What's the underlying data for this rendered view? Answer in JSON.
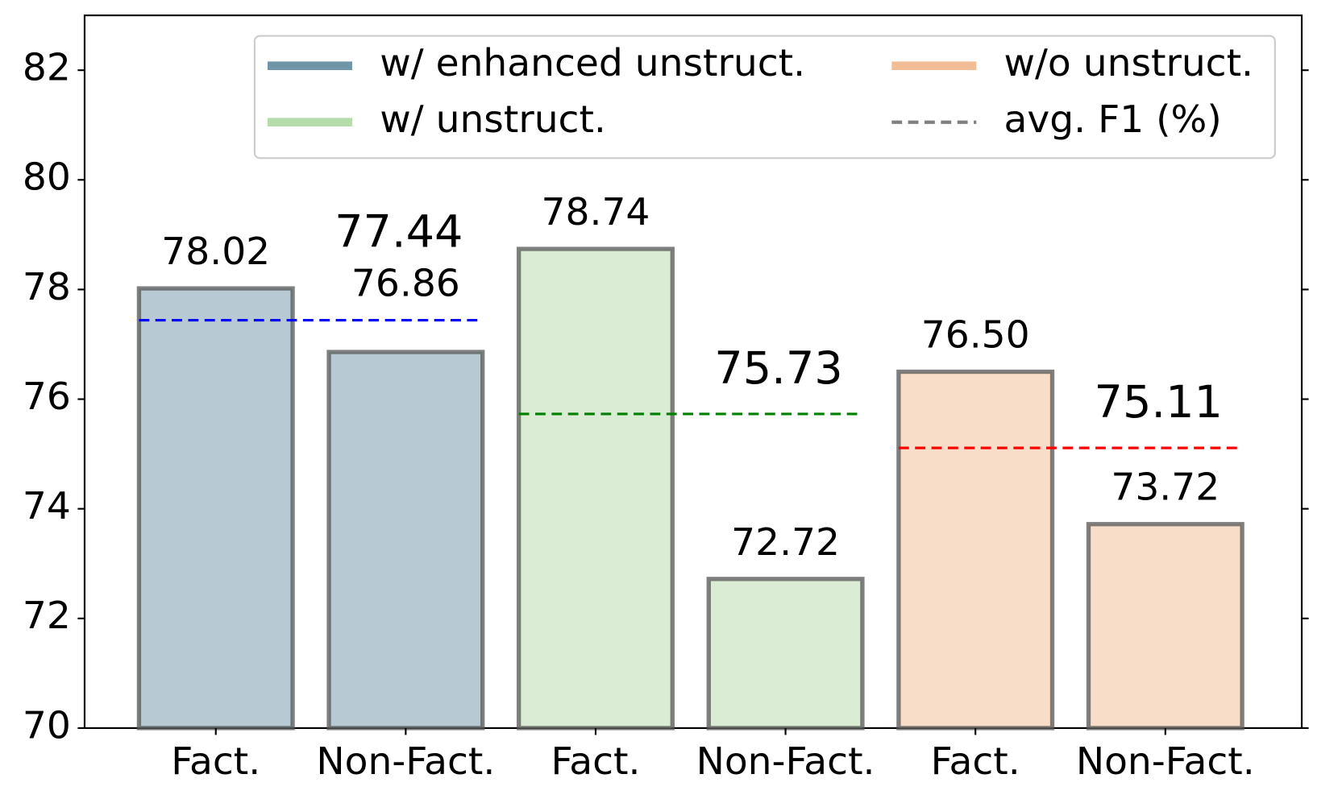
{
  "chart_data": {
    "type": "bar",
    "categories": [
      "Fact.",
      "Non-Fact."
    ],
    "series": [
      {
        "name": "w/ enhanced unstruct.",
        "color": "#6f96a8",
        "values": [
          78.02,
          76.86
        ],
        "avg": 77.44,
        "avg_color": "#0000ff"
      },
      {
        "name": "w/ unstruct.",
        "color": "#b5dcaa",
        "values": [
          78.74,
          72.72
        ],
        "avg": 75.73,
        "avg_color": "#008000"
      },
      {
        "name": "w/o unstruct.",
        "color": "#f2bd94",
        "values": [
          76.5,
          73.72
        ],
        "value_labels": [
          "76.50",
          "73.72"
        ],
        "avg": 75.11,
        "avg_color": "#ff0000"
      }
    ],
    "avg_legend": "avg. F1 (%)",
    "avg_legend_color": "#808080",
    "ylim": [
      70,
      83
    ],
    "yticks": [
      70,
      72,
      74,
      76,
      78,
      80,
      82
    ],
    "legend": "upper right"
  }
}
